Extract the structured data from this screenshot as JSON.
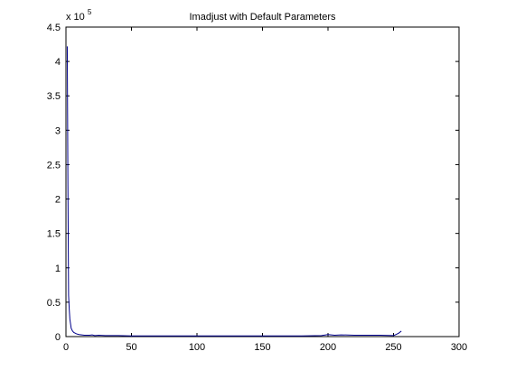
{
  "chart_data": {
    "type": "line",
    "title": "Imadjust with Default Parameters",
    "xlabel": "",
    "ylabel": "",
    "xlim": [
      0,
      300
    ],
    "ylim": [
      0,
      4.5
    ],
    "y_scale_label": "x 10",
    "y_scale_exponent": "5",
    "x_ticks": [
      "0",
      "50",
      "100",
      "150",
      "200",
      "250",
      "300"
    ],
    "y_ticks": [
      "0",
      "0.5",
      "1",
      "1.5",
      "2",
      "2.5",
      "3",
      "3.5",
      "4",
      "4.5"
    ],
    "grid": false,
    "legend": "none",
    "series": [
      {
        "color": "#00008b",
        "x": [
          1,
          1.5,
          2,
          2.5,
          3,
          4,
          5,
          6,
          7,
          8,
          9,
          10,
          12,
          14,
          16,
          18,
          20,
          22,
          25,
          30,
          35,
          40,
          50,
          60,
          80,
          100,
          120,
          140,
          160,
          180,
          195,
          200,
          205,
          210,
          220,
          230,
          240,
          250,
          252,
          254,
          256
        ],
        "values": [
          4.22,
          2.2,
          0.6,
          0.4,
          0.25,
          0.12,
          0.08,
          0.06,
          0.05,
          0.04,
          0.035,
          0.03,
          0.025,
          0.02,
          0.02,
          0.02,
          0.025,
          0.015,
          0.02,
          0.015,
          0.015,
          0.015,
          0.01,
          0.01,
          0.01,
          0.01,
          0.01,
          0.01,
          0.01,
          0.01,
          0.015,
          0.03,
          0.02,
          0.025,
          0.02,
          0.02,
          0.02,
          0.015,
          0.03,
          0.05,
          0.08
        ]
      }
    ]
  }
}
